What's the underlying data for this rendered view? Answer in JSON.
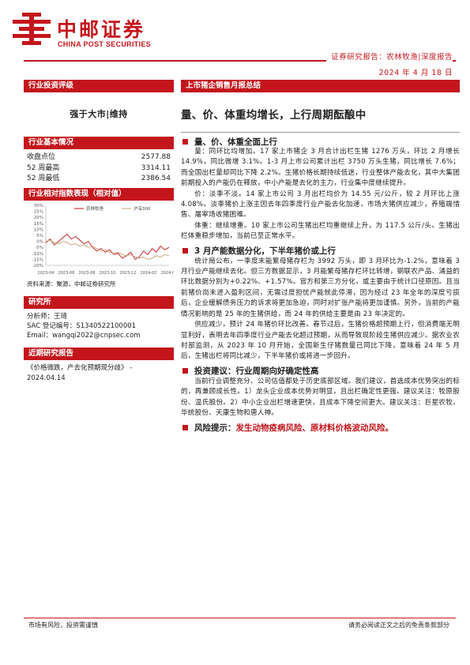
{
  "header": {
    "logo_cn": "中邮证券",
    "logo_en": "CHINA POST SECURITIES",
    "report_type": "证券研究报告：农林牧渔|深度报告",
    "date": "2024 年 4 月 18 日"
  },
  "left": {
    "rating_head": "行业投资评级",
    "rating": "强于大市|维持",
    "basic_head": "行业基本情况",
    "stats": [
      {
        "label": "收盘点位",
        "value": "2577.88"
      },
      {
        "label": "52 周最高",
        "value": "3314.11"
      },
      {
        "label": "52 周最低",
        "value": "2386.54"
      }
    ],
    "perf_head": "行业相对指数表现（相对值）",
    "source": "资料来源：聚源，中邮证券研究所",
    "research_head": "研究所",
    "analyst_lines": [
      "分析师：王琦",
      "SAC 登记编号：S1340522100001",
      "Email：wangqi2022@cnpsec.com"
    ],
    "recent_head": "近期研究报告",
    "recent_lines": [
      "《价格微跌，产去化预期现分歧》 -",
      "2024.04.14"
    ]
  },
  "chart_data": {
    "type": "line",
    "title": "",
    "xlabel": "",
    "ylabel": "",
    "ylim": [
      -20,
      30
    ],
    "yticks": [
      "30%",
      "25%",
      "20%",
      "15%",
      "10%",
      "5%",
      "0%",
      "-5%",
      "-10%",
      "-15%",
      "-20%"
    ],
    "xticks": [
      "2023-04",
      "2023-06",
      "2023-08",
      "2023-10",
      "2023-12",
      "2024-02",
      "2024-04"
    ],
    "series": [
      {
        "name": "农林牧渔",
        "color": "#c3161c",
        "values": [
          -1,
          2,
          -3,
          0,
          3,
          6,
          2,
          4,
          1,
          -2,
          0,
          -5,
          -8,
          -6,
          -9,
          -7,
          -11,
          -10,
          -14,
          -12,
          -9,
          -15,
          -13,
          -8,
          -11,
          -6,
          -9,
          -4,
          -7,
          -5
        ]
      },
      {
        "name": "沪深300",
        "color": "#c9a070",
        "values": [
          0,
          1,
          -1,
          -2,
          0,
          -1,
          -3,
          -2,
          -4,
          -3,
          -5,
          -4,
          -6,
          -8,
          -7,
          -9,
          -10,
          -9,
          -11,
          -12,
          -11,
          -13,
          -14,
          -13,
          -15,
          -14,
          -12,
          -13,
          -11,
          -12
        ]
      }
    ]
  },
  "right": {
    "title_bar": "上市猪企销售月报总结",
    "main_title": "量、价、体重均增长，上行周期酝酿中",
    "sections": [
      {
        "heading": "量、价、体重全面上行",
        "paras": [
          "量：同环比均增加。17 家上市猪企 3 月合计出栏生猪 1276 万头，环比 2 月增长 14.9%，同比微增 3.1%。1-3 月上市公司累计出栏 3750 万头生猪，同比增长 7.6%；而全国出栏量却同比下降 2.2%。生猪价格长期持续低迷，行业整体产能去化，其中大集团前期投入的产能仍在释放，中小产能是去化的主力，行业集中度继续提升。",
          "价：淡季不淡。14 家上市公司 3 月出栏均价为 14.55 元/公斤，较 2 月环比上涨 4.08%。淡季猪价上涨主因去年四季度行业产能去化加速，市场大猪供应减少，养殖端惜售、屠宰场收猪困难。",
          "体重：继续增重。10 家上市公司生猪出栏均重继续上升，为 117.5 公斤/头。生猪出栏体重稳步增加，当前已至正常水平。"
        ]
      },
      {
        "heading": "3 月产能数据分化，下半年猪价或上行",
        "paras": [
          "统计局公布，一季度末能繁母猪存栏为 3992 万头，即 3 月环比为-1.2%，意味着 3 月行业产能继续去化。但三方数据显示，3 月能繁母猪存栏环比转增，钢联农产品、涌益的环比数据分别为+0.22%、+1.57%。官方和第三方分化，或主要由于统计口径原因。且当前猪价尚未进入盈利区间，无需过度担忧产能就此停滞，因为经过 23 年全年的深度亏损后，企业缓解债务压力的诉求将更加急迫，同时对扩张产能将更加谨慎。另外，当前的产能情况影响的是 25 年的生猪供给，而 24 年的供给主要是由 23 年决定的。",
          "供应减少，预计 24 年猪价环比改善。春节过后，生猪价格超预期上行，但消费端无明显利好，表明去年四季度行业产能去化超过预期，从而导致现阶段生猪供应减少。据农业农村部监测，从 2023 年 10 月开始，全国新生仔猪数量已同比下降，意味着 24 年 5 月后，生猪出栏将同比减少，下半年猪价或将进一步回升。"
        ]
      },
      {
        "heading": "投资建议：行业周期向好确定性高",
        "paras": [
          "当前行业调整充分、公司估值都处于历史底部区域。我们建议，首选成本优势突出的标的，再兼顾成长性。1）龙头企业成本优势对明显，且出栏确定性更强。建议关注：牧原股份、温氏股份。2）中小企业出栏增速更快，且成本下降空间更大。建议关注：巨星农牧、华统股份、天康生物和唐人神。"
        ]
      }
    ],
    "risk_lead": "风险提示：",
    "risk_text": "发生动物疫病风险、原材料价格波动风险。"
  },
  "footer": {
    "left": "市场有风险，投资需谨慎",
    "right": "请务必阅读正文之后的免责条款部分"
  }
}
